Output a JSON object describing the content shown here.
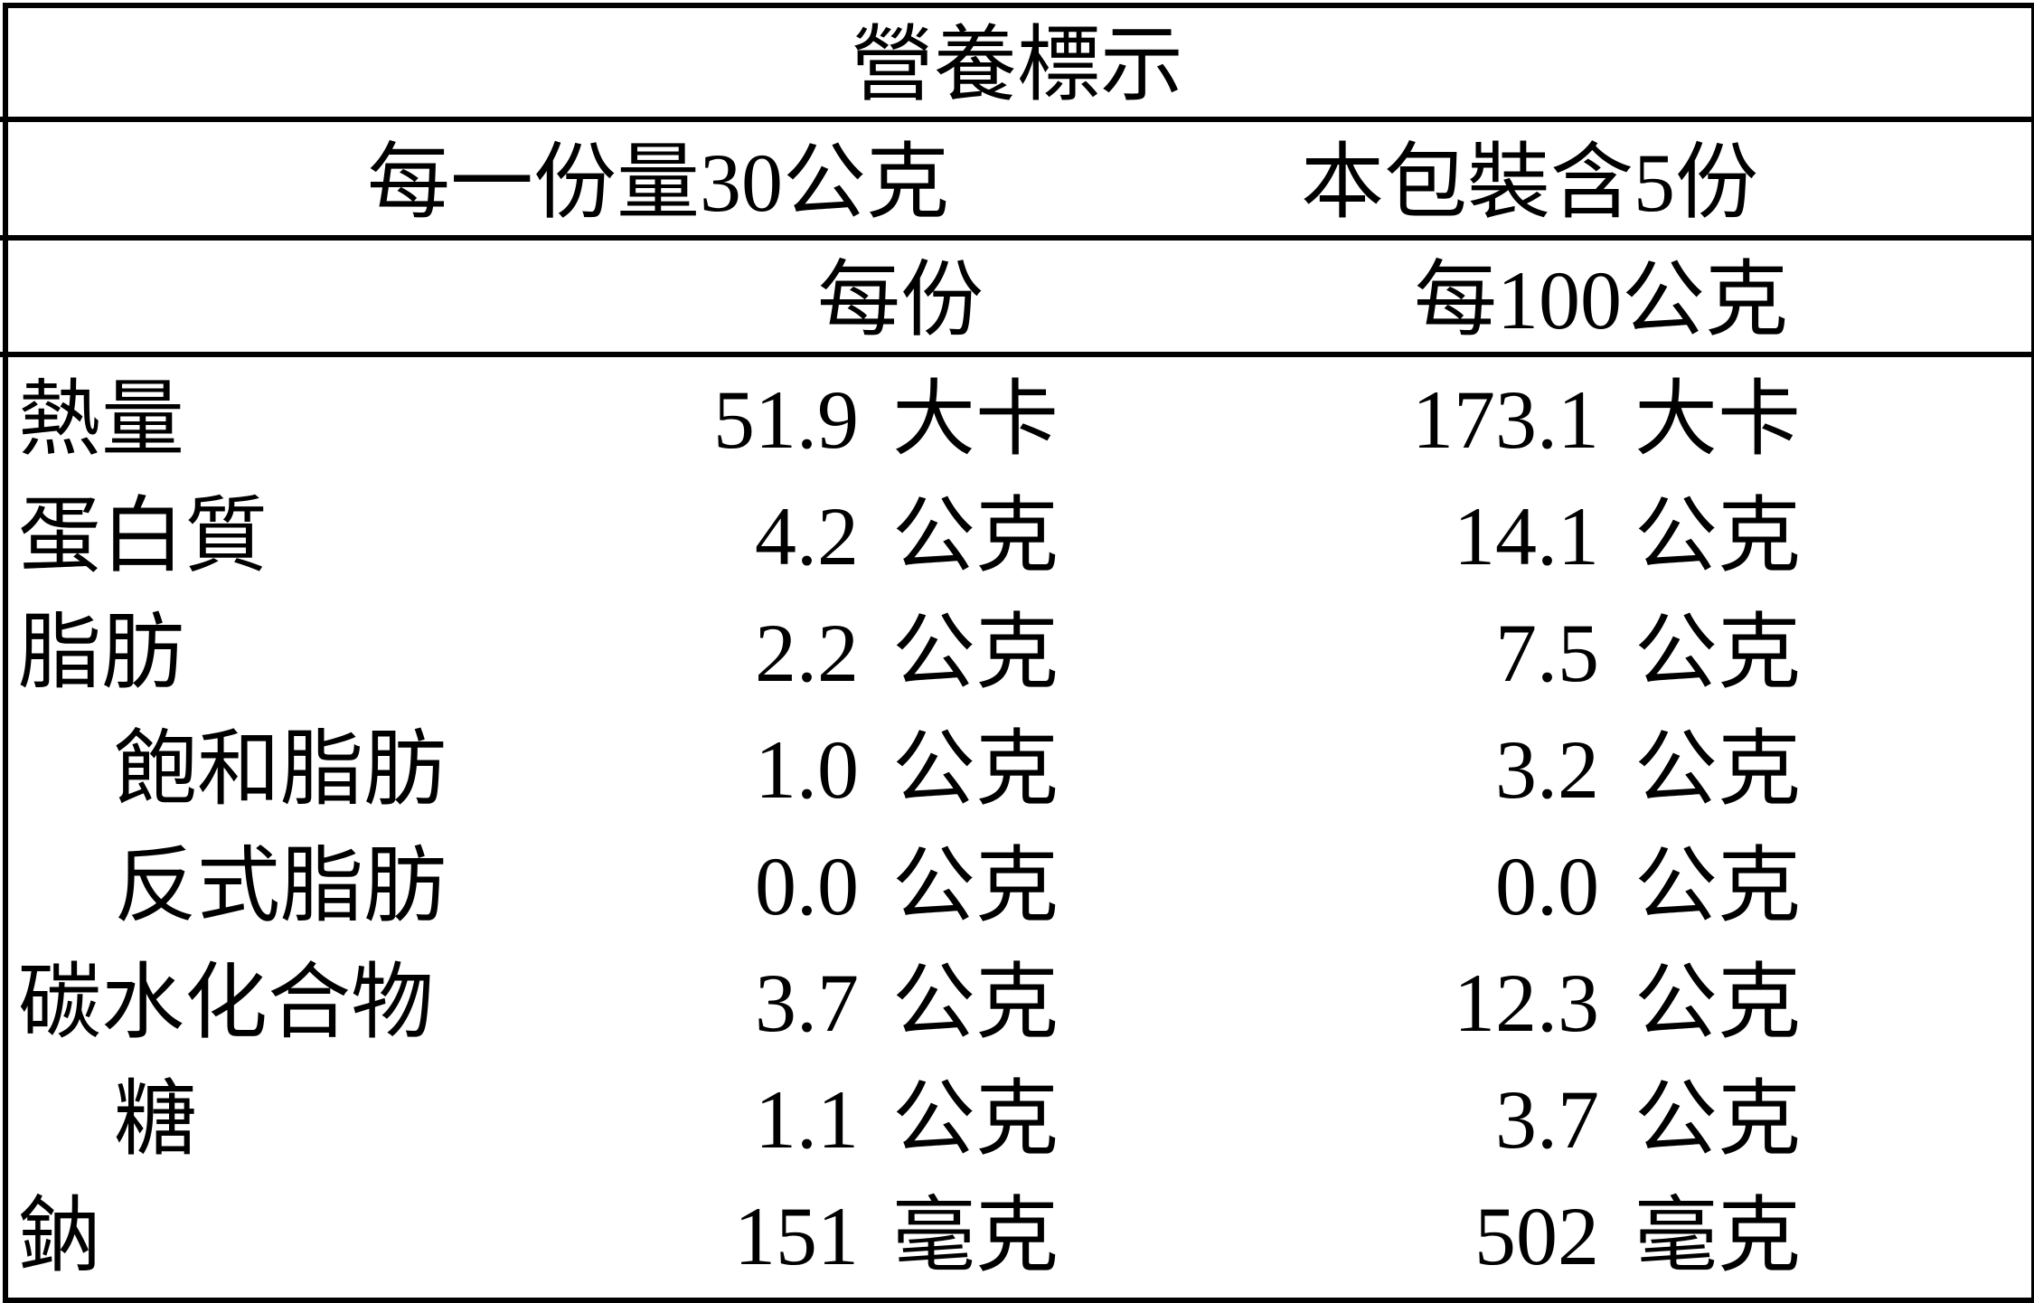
{
  "title": "營養標示",
  "serving": {
    "size": "每一份量30公克",
    "servings_per_package": "本包裝含5份"
  },
  "columns": {
    "per_serving": "每份",
    "per_100g": "每100公克"
  },
  "rows": [
    {
      "label": "熱量",
      "indent": false,
      "per_serving": "51.9",
      "per_serving_unit": "大卡",
      "per_100g": "173.1",
      "per_100g_unit": "大卡"
    },
    {
      "label": "蛋白質",
      "indent": false,
      "per_serving": "4.2",
      "per_serving_unit": "公克",
      "per_100g": "14.1",
      "per_100g_unit": "公克"
    },
    {
      "label": "脂肪",
      "indent": false,
      "per_serving": "2.2",
      "per_serving_unit": "公克",
      "per_100g": "7.5",
      "per_100g_unit": "公克"
    },
    {
      "label": "飽和脂肪",
      "indent": true,
      "per_serving": "1.0",
      "per_serving_unit": "公克",
      "per_100g": "3.2",
      "per_100g_unit": "公克"
    },
    {
      "label": "反式脂肪",
      "indent": true,
      "per_serving": "0.0",
      "per_serving_unit": "公克",
      "per_100g": "0.0",
      "per_100g_unit": "公克"
    },
    {
      "label": "碳水化合物",
      "indent": false,
      "per_serving": "3.7",
      "per_serving_unit": "公克",
      "per_100g": "12.3",
      "per_100g_unit": "公克"
    },
    {
      "label": "糖",
      "indent": true,
      "per_serving": "1.1",
      "per_serving_unit": "公克",
      "per_100g": "3.7",
      "per_100g_unit": "公克"
    },
    {
      "label": "鈉",
      "indent": false,
      "per_serving": "151",
      "per_serving_unit": "毫克",
      "per_100g": "502",
      "per_100g_unit": "毫克"
    }
  ]
}
